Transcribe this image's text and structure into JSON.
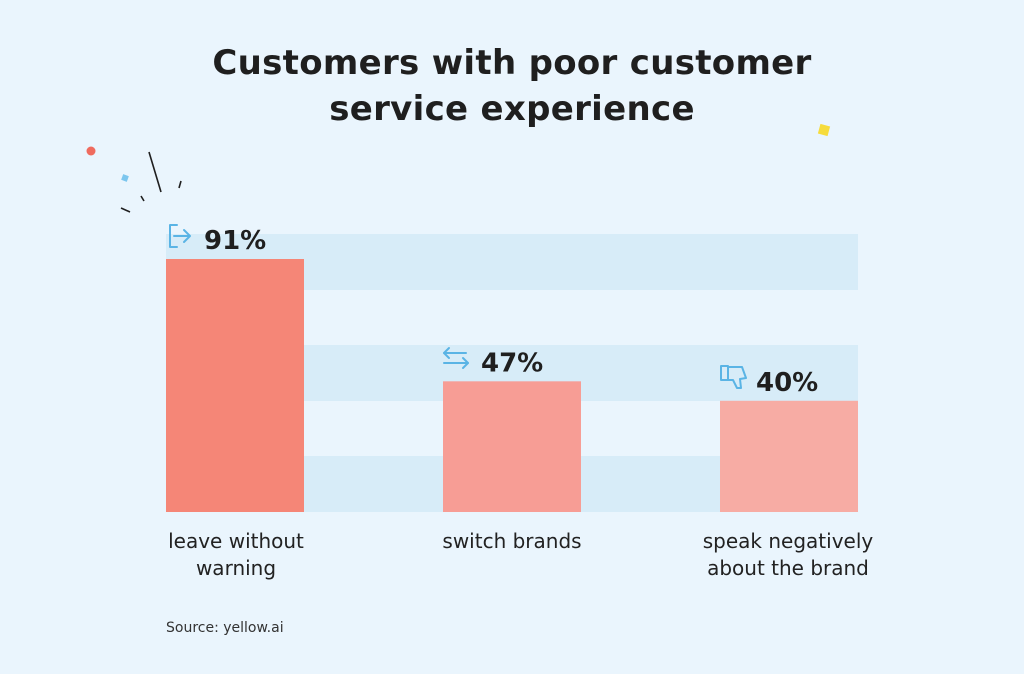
{
  "chart_data": {
    "type": "bar",
    "title_lines": [
      "Customers with poor customer",
      "service experience"
    ],
    "categories": [
      "leave without warning",
      "switch brands",
      "speak negatively about the brand"
    ],
    "category_label_lines": [
      [
        "leave without",
        "warning"
      ],
      [
        "switch brands"
      ],
      [
        "speak negatively",
        "about the brand"
      ]
    ],
    "values": [
      91,
      47,
      40
    ],
    "value_labels": [
      "91%",
      "47%",
      "40%"
    ],
    "icons": [
      "exit-icon",
      "switch-arrows-icon",
      "thumbs-down-icon"
    ],
    "bar_colors": [
      "#f58677",
      "#f79d95",
      "#f7aca4"
    ],
    "band_color": "#d7ecf8",
    "ylim": [
      0,
      100
    ],
    "grid": false,
    "source": "Source: yellow.ai"
  }
}
